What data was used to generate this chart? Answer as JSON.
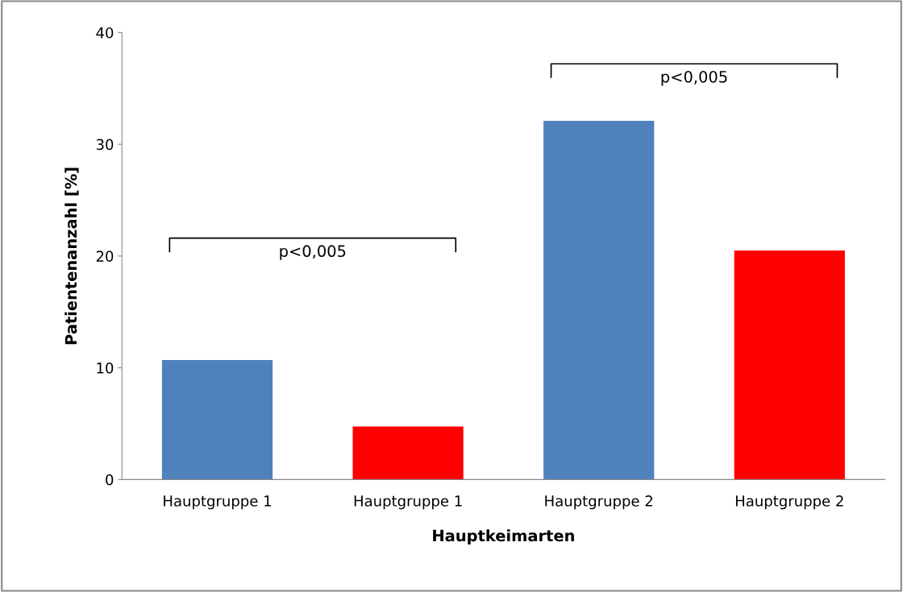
{
  "chart_data": {
    "type": "bar",
    "xlabel": "Hauptkeimarten",
    "ylabel": "Patientenanzahl [%]",
    "categories": [
      "Hauptgruppe 1",
      "Hauptgruppe 1",
      "Hauptgruppe 2",
      "Hauptgruppe 2"
    ],
    "values": [
      10.7,
      4.75,
      32.1,
      20.5
    ],
    "colors": [
      "#4f81bd",
      "#ff0000",
      "#4f81bd",
      "#ff0000"
    ],
    "ylim": [
      0,
      40
    ],
    "yticks": [
      0,
      10,
      20,
      30,
      40
    ],
    "grid": false,
    "legend": false,
    "annotations": [
      "p<0,005",
      "p<0,005"
    ]
  }
}
